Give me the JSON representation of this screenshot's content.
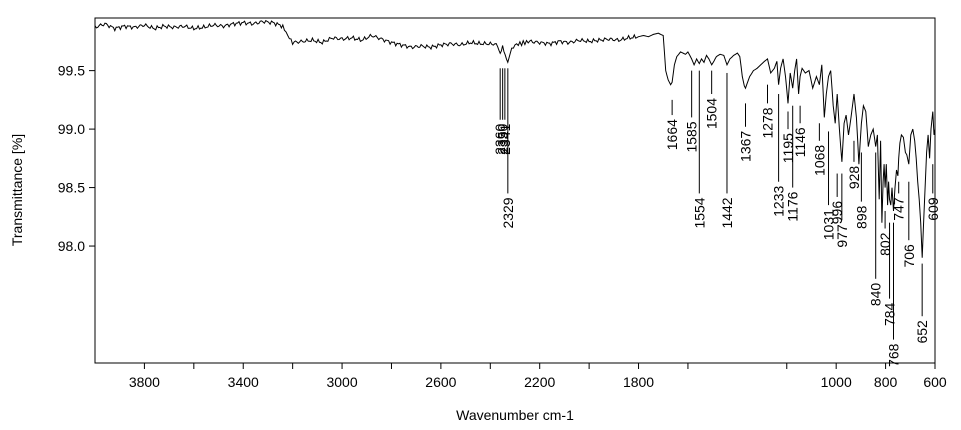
{
  "chart_data": {
    "type": "line",
    "title": "",
    "xlabel": "Wavenumber cm-1",
    "ylabel": "Transmittance [%]",
    "xlim": [
      4000,
      600
    ],
    "x_reversed": true,
    "ylim": [
      97.0,
      99.95
    ],
    "x_ticks": [
      3800,
      3400,
      3000,
      2600,
      2200,
      1800,
      1000,
      800,
      600
    ],
    "x_tick_labels": [
      "3800",
      "3400",
      "3000",
      "2600",
      "2200",
      "1800",
      "1000",
      "800",
      "600"
    ],
    "y_ticks": [
      99.5,
      99.0,
      98.5,
      98.0
    ],
    "y_tick_labels": [
      "99.5",
      "99.0",
      "98.5",
      "98.0"
    ],
    "grid": false,
    "line_color": "#000000",
    "series": [
      {
        "x": [
          4000,
          3960,
          3920,
          3880,
          3840,
          3800,
          3760,
          3720,
          3680,
          3640,
          3600,
          3560,
          3520,
          3480,
          3440,
          3400,
          3360,
          3320,
          3280,
          3240,
          3220,
          3200,
          3160,
          3120,
          3080,
          3040,
          3000,
          2960,
          2920,
          2880,
          2840,
          2800,
          2760,
          2720,
          2680,
          2640,
          2600,
          2560,
          2520,
          2480,
          2440,
          2400,
          2370,
          2360,
          2350,
          2340,
          2329,
          2320,
          2300,
          2280,
          2260,
          2240,
          2200,
          2160,
          2120,
          2080,
          2040,
          2000,
          1960,
          1920,
          1880,
          1840,
          1800,
          1780,
          1760,
          1740,
          1720,
          1700,
          1690,
          1680,
          1670,
          1664,
          1655,
          1645,
          1630,
          1610,
          1600,
          1585,
          1575,
          1565,
          1554,
          1545,
          1535,
          1525,
          1515,
          1504,
          1495,
          1485,
          1470,
          1455,
          1442,
          1430,
          1415,
          1400,
          1390,
          1380,
          1372,
          1367,
          1362,
          1350,
          1335,
          1320,
          1305,
          1290,
          1278,
          1265,
          1250,
          1240,
          1233,
          1225,
          1215,
          1205,
          1195,
          1186,
          1176,
          1168,
          1160,
          1152,
          1146,
          1138,
          1125,
          1110,
          1095,
          1080,
          1068,
          1058,
          1048,
          1040,
          1031,
          1022,
          1012,
          1004,
          996,
          987,
          977,
          968,
          960,
          950,
          940,
          928,
          918,
          908,
          898,
          890,
          880,
          870,
          860,
          850,
          840,
          833,
          826,
          820,
          815,
          810,
          806,
          802,
          797,
          792,
          788,
          784,
          779,
          774,
          768,
          762,
          756,
          750,
          747,
          742,
          736,
          728,
          720,
          714,
          706,
          698,
          690,
          682,
          676,
          670,
          664,
          658,
          652,
          646,
          640,
          634,
          628,
          622,
          616,
          609,
          604,
          600
        ],
        "y": [
          99.87,
          99.9,
          99.86,
          99.88,
          99.87,
          99.89,
          99.86,
          99.88,
          99.87,
          99.88,
          99.86,
          99.87,
          99.89,
          99.88,
          99.9,
          99.91,
          99.9,
          99.92,
          99.91,
          99.88,
          99.8,
          99.74,
          99.75,
          99.76,
          99.74,
          99.78,
          99.77,
          99.78,
          99.76,
          99.8,
          99.77,
          99.74,
          99.72,
          99.7,
          99.71,
          99.7,
          99.72,
          99.73,
          99.72,
          99.74,
          99.73,
          99.73,
          99.72,
          99.65,
          99.7,
          99.62,
          99.58,
          99.66,
          99.72,
          99.73,
          99.74,
          99.75,
          99.74,
          99.73,
          99.75,
          99.74,
          99.76,
          99.75,
          99.76,
          99.77,
          99.76,
          99.78,
          99.79,
          99.8,
          99.79,
          99.81,
          99.82,
          99.8,
          99.5,
          99.42,
          99.38,
          99.4,
          99.55,
          99.62,
          99.66,
          99.64,
          99.66,
          99.6,
          99.55,
          99.6,
          99.56,
          99.6,
          99.57,
          99.63,
          99.6,
          99.55,
          99.58,
          99.62,
          99.64,
          99.63,
          99.55,
          99.6,
          99.63,
          99.65,
          99.62,
          99.45,
          99.37,
          99.35,
          99.38,
          99.45,
          99.5,
          99.52,
          99.55,
          99.58,
          99.6,
          99.48,
          99.52,
          99.58,
          99.38,
          99.52,
          99.6,
          99.45,
          99.22,
          99.48,
          99.35,
          99.5,
          99.6,
          99.3,
          99.45,
          99.52,
          99.48,
          99.5,
          99.35,
          99.45,
          99.38,
          99.55,
          99.1,
          99.3,
          99.45,
          99.5,
          99.2,
          99.05,
          99.3,
          99.0,
          98.72,
          99.05,
          99.12,
          98.95,
          99.1,
          99.3,
          99.1,
          98.7,
          99.05,
          99.2,
          99.15,
          98.85,
          98.95,
          99.0,
          98.85,
          98.95,
          98.4,
          98.9,
          98.2,
          98.55,
          98.7,
          98.5,
          98.7,
          98.35,
          98.55,
          98.4,
          98.35,
          98.5,
          98.3,
          98.5,
          98.65,
          98.6,
          98.75,
          98.88,
          98.95,
          98.93,
          98.8,
          98.78,
          98.7,
          98.95,
          99.0,
          98.9,
          98.75,
          98.55,
          98.4,
          98.2,
          97.9,
          98.2,
          98.5,
          98.8,
          98.95,
          98.75,
          99.0,
          99.15,
          98.95,
          99.0
        ]
      }
    ],
    "peak_labels": [
      {
        "label": "2360",
        "wavenumber": 2360,
        "y_start": 99.52,
        "y_end": 99.08
      },
      {
        "label": "2341",
        "wavenumber": 2341,
        "y_start": 99.52,
        "y_end": 99.08
      },
      {
        "label": "2350",
        "wavenumber": 2350,
        "y_start": 99.52,
        "y_end": 99.08
      },
      {
        "label": "2329",
        "wavenumber": 2329,
        "y_start": 99.52,
        "y_end": 98.45
      },
      {
        "label": "1664",
        "wavenumber": 1664,
        "y_start": 99.25,
        "y_end": 99.12
      },
      {
        "label": "1585",
        "wavenumber": 1585,
        "y_start": 99.5,
        "y_end": 99.1
      },
      {
        "label": "1554",
        "wavenumber": 1554,
        "y_start": 99.5,
        "y_end": 98.45
      },
      {
        "label": "1504",
        "wavenumber": 1504,
        "y_start": 99.5,
        "y_end": 99.3
      },
      {
        "label": "1442",
        "wavenumber": 1442,
        "y_start": 99.48,
        "y_end": 98.45
      },
      {
        "label": "1367",
        "wavenumber": 1367,
        "y_start": 99.22,
        "y_end": 99.02
      },
      {
        "label": "1278",
        "wavenumber": 1278,
        "y_start": 99.38,
        "y_end": 99.22
      },
      {
        "label": "1233",
        "wavenumber": 1233,
        "y_start": 99.3,
        "y_end": 98.55
      },
      {
        "label": "1195",
        "wavenumber": 1195,
        "y_start": 99.15,
        "y_end": 99.0
      },
      {
        "label": "1176",
        "wavenumber": 1176,
        "y_start": 99.2,
        "y_end": 98.5
      },
      {
        "label": "1146",
        "wavenumber": 1146,
        "y_start": 99.2,
        "y_end": 99.05
      },
      {
        "label": "1068",
        "wavenumber": 1068,
        "y_start": 99.05,
        "y_end": 98.9
      },
      {
        "label": "1031",
        "wavenumber": 1031,
        "y_start": 98.98,
        "y_end": 98.35
      },
      {
        "label": "996",
        "wavenumber": 996,
        "y_start": 98.62,
        "y_end": 98.42
      },
      {
        "label": "977",
        "wavenumber": 977,
        "y_start": 98.62,
        "y_end": 98.22
      },
      {
        "label": "928",
        "wavenumber": 928,
        "y_start": 98.9,
        "y_end": 98.72
      },
      {
        "label": "898",
        "wavenumber": 898,
        "y_start": 98.8,
        "y_end": 98.38
      },
      {
        "label": "840",
        "wavenumber": 840,
        "y_start": 98.8,
        "y_end": 97.72
      },
      {
        "label": "802",
        "wavenumber": 802,
        "y_start": 98.3,
        "y_end": 98.15
      },
      {
        "label": "784",
        "wavenumber": 784,
        "y_start": 98.2,
        "y_end": 97.55
      },
      {
        "label": "768",
        "wavenumber": 768,
        "y_start": 98.2,
        "y_end": 97.2
      },
      {
        "label": "747",
        "wavenumber": 747,
        "y_start": 98.55,
        "y_end": 98.45
      },
      {
        "label": "706",
        "wavenumber": 706,
        "y_start": 98.55,
        "y_end": 98.05
      },
      {
        "label": "652",
        "wavenumber": 652,
        "y_start": 97.85,
        "y_end": 97.4
      },
      {
        "label": "609",
        "wavenumber": 609,
        "y_start": 98.7,
        "y_end": 98.45
      }
    ]
  }
}
